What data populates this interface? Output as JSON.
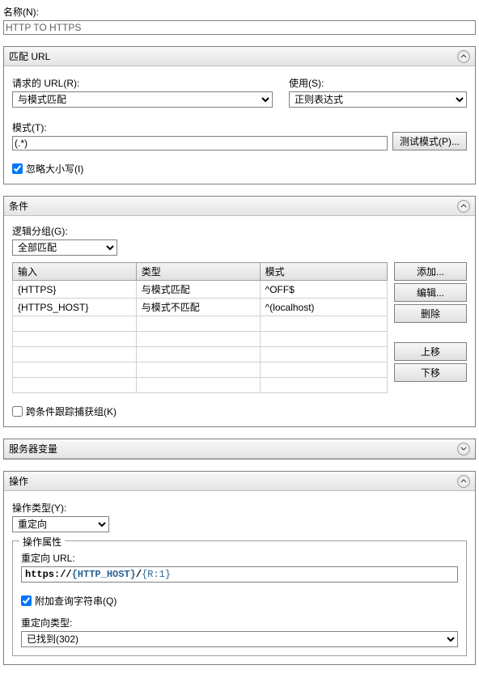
{
  "colors": {
    "background": "#ffffff",
    "panel_header_top": "#f8f8f8",
    "panel_header_bottom": "#e4e4e4",
    "border": "#808080",
    "grid_border": "#d0d0d0",
    "disabled_bg": "#e8e8e8"
  },
  "name": {
    "label": "名称(N):",
    "value": "HTTP TO HTTPS"
  },
  "match_url": {
    "title": "匹配 URL",
    "requested_label": "请求的 URL(R):",
    "requested_value": "与模式匹配",
    "using_label": "使用(S):",
    "using_value": "正则表达式",
    "pattern_label": "模式(T):",
    "pattern_value": "(.*)",
    "test_button": "测试模式(P)...",
    "ignore_case_label": "忽略大小写(I)",
    "ignore_case_checked": true
  },
  "conditions": {
    "title": "条件",
    "logical_label": "逻辑分组(G):",
    "logical_value": "全部匹配",
    "columns": [
      "输入",
      "类型",
      "模式"
    ],
    "rows": [
      {
        "input": "{HTTPS}",
        "type": "与模式匹配",
        "pattern": "^OFF$"
      },
      {
        "input": "{HTTPS_HOST}",
        "type": "与模式不匹配",
        "pattern": "^(localhost)"
      }
    ],
    "empty_rows": 5,
    "buttons": {
      "add": "添加...",
      "edit": "编辑...",
      "delete": "删除",
      "move_up": "上移",
      "move_down": "下移"
    },
    "track_groups_label": "跨条件跟踪捕获组(K)",
    "track_groups_checked": false
  },
  "server_vars": {
    "title": "服务器变量"
  },
  "action": {
    "title": "操作",
    "type_label": "操作类型(Y):",
    "type_value": "重定向",
    "props_legend": "操作属性",
    "redirect_url_label": "重定向 URL:",
    "redirect_url_parts": {
      "prefix": "https://",
      "host": "{HTTP_HOST}",
      "sep": "/",
      "r": "{R:1}"
    },
    "append_qs_label": "附加查询字符串(Q)",
    "append_qs_checked": true,
    "redirect_type_label": "重定向类型:",
    "redirect_type_value": "已找到(302)"
  }
}
